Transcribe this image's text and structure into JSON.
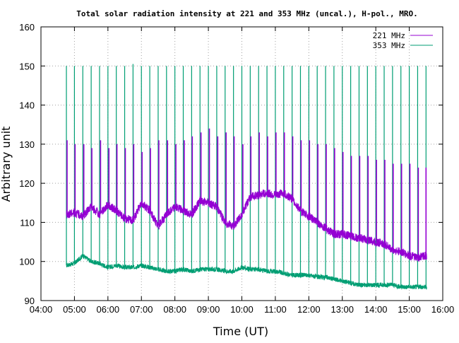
{
  "chart_data": {
    "type": "line",
    "title": "Total solar radiation intensity at 221 and 353 MHz (uncal.), H-pol., MRO.",
    "xlabel": "Time (UT)",
    "ylabel": "Arbitrary unit",
    "xlim": [
      4,
      16
    ],
    "ylim": [
      90,
      160
    ],
    "x_ticks": [
      {
        "value": 4,
        "label": "04:00"
      },
      {
        "value": 5,
        "label": "05:00"
      },
      {
        "value": 6,
        "label": "06:00"
      },
      {
        "value": 7,
        "label": "07:00"
      },
      {
        "value": 8,
        "label": "08:00"
      },
      {
        "value": 9,
        "label": "09:00"
      },
      {
        "value": 10,
        "label": "10:00"
      },
      {
        "value": 11,
        "label": "11:00"
      },
      {
        "value": 12,
        "label": "12:00"
      },
      {
        "value": 13,
        "label": "13:00"
      },
      {
        "value": 14,
        "label": "14:00"
      },
      {
        "value": 15,
        "label": "15:00"
      },
      {
        "value": 16,
        "label": "16:00"
      }
    ],
    "y_ticks": [
      90,
      100,
      110,
      120,
      130,
      140,
      150,
      160
    ],
    "grid": true,
    "legend_position": "top-right",
    "series": [
      {
        "name": "221 MHz",
        "color": "#9400d3",
        "x": [
          4.76,
          5.0,
          5.25,
          5.5,
          5.75,
          6.0,
          6.25,
          6.5,
          6.75,
          7.0,
          7.25,
          7.5,
          7.75,
          8.0,
          8.25,
          8.5,
          8.75,
          9.0,
          9.25,
          9.5,
          9.75,
          10.0,
          10.25,
          10.5,
          10.75,
          11.0,
          11.25,
          11.5,
          11.75,
          12.0,
          12.25,
          12.5,
          12.75,
          13.0,
          13.25,
          13.5,
          13.75,
          14.0,
          14.25,
          14.5,
          14.75,
          15.0,
          15.25,
          15.5,
          15.52
        ],
        "y": [
          112,
          112.5,
          111.5,
          114,
          112,
          114.5,
          113,
          111,
          110.5,
          115,
          113,
          109,
          112,
          114,
          113,
          112,
          115.5,
          115,
          114,
          110,
          109,
          112,
          116.5,
          117,
          117.5,
          117,
          117.5,
          116,
          113,
          111.5,
          110,
          108.5,
          107,
          107,
          106.5,
          106,
          105.5,
          105,
          104.5,
          103,
          102.5,
          101.5,
          101,
          101.5,
          100.5
        ],
        "spikes": [
          {
            "x": 4.78,
            "y": 131
          },
          {
            "x": 5.02,
            "y": 130
          },
          {
            "x": 5.28,
            "y": 130
          },
          {
            "x": 5.52,
            "y": 129
          },
          {
            "x": 5.78,
            "y": 131
          },
          {
            "x": 6.03,
            "y": 129
          },
          {
            "x": 6.27,
            "y": 130
          },
          {
            "x": 6.52,
            "y": 129
          },
          {
            "x": 6.77,
            "y": 130
          },
          {
            "x": 7.02,
            "y": 128
          },
          {
            "x": 7.27,
            "y": 129
          },
          {
            "x": 7.52,
            "y": 131
          },
          {
            "x": 7.78,
            "y": 131
          },
          {
            "x": 8.03,
            "y": 130
          },
          {
            "x": 8.28,
            "y": 131
          },
          {
            "x": 8.52,
            "y": 132
          },
          {
            "x": 8.78,
            "y": 133
          },
          {
            "x": 9.03,
            "y": 134
          },
          {
            "x": 9.28,
            "y": 132
          },
          {
            "x": 9.53,
            "y": 133
          },
          {
            "x": 9.77,
            "y": 132
          },
          {
            "x": 10.03,
            "y": 130
          },
          {
            "x": 10.27,
            "y": 132
          },
          {
            "x": 10.52,
            "y": 133
          },
          {
            "x": 10.77,
            "y": 132
          },
          {
            "x": 11.02,
            "y": 133
          },
          {
            "x": 11.27,
            "y": 133
          },
          {
            "x": 11.52,
            "y": 132
          },
          {
            "x": 11.77,
            "y": 131
          },
          {
            "x": 12.02,
            "y": 131
          },
          {
            "x": 12.27,
            "y": 130
          },
          {
            "x": 12.52,
            "y": 130
          },
          {
            "x": 12.77,
            "y": 129
          },
          {
            "x": 13.02,
            "y": 128
          },
          {
            "x": 13.27,
            "y": 127
          },
          {
            "x": 13.52,
            "y": 127
          },
          {
            "x": 13.77,
            "y": 127
          },
          {
            "x": 14.02,
            "y": 126
          },
          {
            "x": 14.27,
            "y": 126
          },
          {
            "x": 14.52,
            "y": 125
          },
          {
            "x": 14.77,
            "y": 125
          },
          {
            "x": 15.02,
            "y": 125
          },
          {
            "x": 15.27,
            "y": 124
          },
          {
            "x": 15.5,
            "y": 124
          }
        ]
      },
      {
        "name": "353 MHz",
        "color": "#009e73",
        "x": [
          4.76,
          5.0,
          5.25,
          5.5,
          5.75,
          6.0,
          6.25,
          6.5,
          6.75,
          7.0,
          7.25,
          7.5,
          7.75,
          8.0,
          8.25,
          8.5,
          8.75,
          9.0,
          9.25,
          9.5,
          9.75,
          10.0,
          10.25,
          10.5,
          10.75,
          11.0,
          11.25,
          11.5,
          11.75,
          12.0,
          12.25,
          12.5,
          12.75,
          13.0,
          13.25,
          13.5,
          13.75,
          14.0,
          14.25,
          14.5,
          14.75,
          15.0,
          15.25,
          15.5,
          15.52
        ],
        "y": [
          99,
          99.5,
          101.5,
          100,
          99.5,
          98.5,
          99,
          98.5,
          98.5,
          99,
          98.5,
          98,
          97.5,
          97.5,
          98,
          97.5,
          98,
          98,
          98,
          97.5,
          97.5,
          98.5,
          98,
          98,
          97.5,
          97.5,
          97,
          96.5,
          96.5,
          96.5,
          96,
          96,
          95.5,
          95,
          94.5,
          94,
          94,
          94,
          94,
          94,
          93.5,
          93.5,
          93.5,
          93.5,
          93
        ],
        "spikes": [
          {
            "x": 4.76,
            "y": 150
          },
          {
            "x": 5.0,
            "y": 150
          },
          {
            "x": 5.25,
            "y": 150
          },
          {
            "x": 5.5,
            "y": 150
          },
          {
            "x": 5.75,
            "y": 150
          },
          {
            "x": 6.0,
            "y": 150
          },
          {
            "x": 6.25,
            "y": 150
          },
          {
            "x": 6.5,
            "y": 150
          },
          {
            "x": 6.75,
            "y": 150.5
          },
          {
            "x": 7.0,
            "y": 150
          },
          {
            "x": 7.25,
            "y": 150
          },
          {
            "x": 7.5,
            "y": 150
          },
          {
            "x": 7.75,
            "y": 150
          },
          {
            "x": 8.0,
            "y": 150
          },
          {
            "x": 8.25,
            "y": 150
          },
          {
            "x": 8.5,
            "y": 150
          },
          {
            "x": 8.75,
            "y": 150
          },
          {
            "x": 9.0,
            "y": 150
          },
          {
            "x": 9.25,
            "y": 150
          },
          {
            "x": 9.5,
            "y": 150
          },
          {
            "x": 9.75,
            "y": 150
          },
          {
            "x": 10.0,
            "y": 150
          },
          {
            "x": 10.25,
            "y": 150
          },
          {
            "x": 10.5,
            "y": 150
          },
          {
            "x": 10.75,
            "y": 150
          },
          {
            "x": 11.0,
            "y": 150
          },
          {
            "x": 11.25,
            "y": 150
          },
          {
            "x": 11.5,
            "y": 150
          },
          {
            "x": 11.75,
            "y": 150
          },
          {
            "x": 12.0,
            "y": 150
          },
          {
            "x": 12.25,
            "y": 150
          },
          {
            "x": 12.5,
            "y": 150
          },
          {
            "x": 12.75,
            "y": 150
          },
          {
            "x": 13.0,
            "y": 150
          },
          {
            "x": 13.25,
            "y": 150
          },
          {
            "x": 13.5,
            "y": 150
          },
          {
            "x": 13.75,
            "y": 150
          },
          {
            "x": 14.0,
            "y": 150
          },
          {
            "x": 14.25,
            "y": 150
          },
          {
            "x": 14.5,
            "y": 150
          },
          {
            "x": 14.75,
            "y": 150
          },
          {
            "x": 15.0,
            "y": 150
          },
          {
            "x": 15.25,
            "y": 150
          },
          {
            "x": 15.5,
            "y": 150
          }
        ]
      }
    ]
  }
}
